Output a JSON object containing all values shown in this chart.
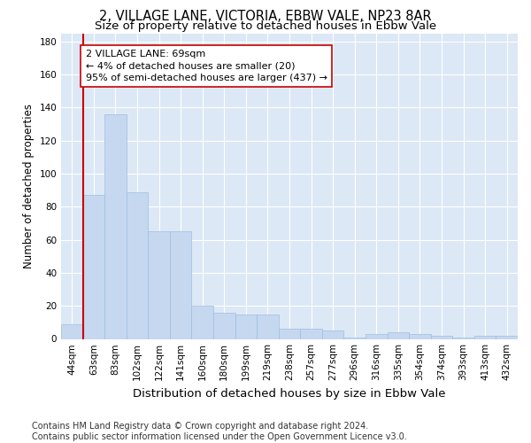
{
  "title": "2, VILLAGE LANE, VICTORIA, EBBW VALE, NP23 8AR",
  "subtitle": "Size of property relative to detached houses in Ebbw Vale",
  "xlabel": "Distribution of detached houses by size in Ebbw Vale",
  "ylabel": "Number of detached properties",
  "bar_color": "#c5d8f0",
  "bar_edge_color": "#a0bede",
  "background_color": "#dce8f5",
  "grid_color": "#ffffff",
  "annotation_text": "2 VILLAGE LANE: 69sqm\n← 4% of detached houses are smaller (20)\n95% of semi-detached houses are larger (437) →",
  "vline_color": "#cc0000",
  "ylim": [
    0,
    185
  ],
  "yticks": [
    0,
    20,
    40,
    60,
    80,
    100,
    120,
    140,
    160,
    180
  ],
  "bin_labels": [
    "44sqm",
    "63sqm",
    "83sqm",
    "102sqm",
    "122sqm",
    "141sqm",
    "160sqm",
    "180sqm",
    "199sqm",
    "219sqm",
    "238sqm",
    "257sqm",
    "277sqm",
    "296sqm",
    "316sqm",
    "335sqm",
    "354sqm",
    "374sqm",
    "393sqm",
    "413sqm",
    "432sqm"
  ],
  "bar_heights": [
    9,
    87,
    136,
    89,
    65,
    65,
    20,
    16,
    15,
    15,
    6,
    6,
    5,
    1,
    3,
    4,
    3,
    2,
    1,
    2,
    2
  ],
  "footer_text": "Contains HM Land Registry data © Crown copyright and database right 2024.\nContains public sector information licensed under the Open Government Licence v3.0.",
  "title_fontsize": 10.5,
  "subtitle_fontsize": 9.5,
  "annotation_fontsize": 8,
  "ylabel_fontsize": 8.5,
  "xlabel_fontsize": 9.5,
  "footer_fontsize": 7,
  "tick_fontsize": 7.5
}
